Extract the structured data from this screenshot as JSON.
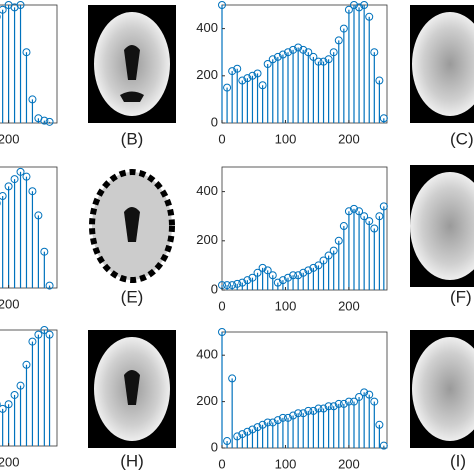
{
  "panel_labels": [
    "(B)",
    "(C)",
    "(E)",
    "(F)",
    "(H)",
    "(I)"
  ],
  "chart_data": [
    {
      "type": "stem",
      "x": [
        176,
        184,
        192,
        200,
        208,
        216,
        224,
        232,
        240,
        248,
        255
      ],
      "values": [
        400,
        450,
        480,
        500,
        490,
        500,
        300,
        100,
        20,
        10,
        5
      ],
      "xlim": [
        175,
        265
      ],
      "ylim": [
        0,
        500
      ],
      "xticks": [
        200
      ],
      "color": "#0072bd"
    },
    {
      "type": "stem",
      "x": [
        0,
        8,
        16,
        24,
        32,
        40,
        48,
        56,
        64,
        72,
        80,
        88,
        96,
        104,
        112,
        120,
        128,
        136,
        144,
        152,
        160,
        168,
        176,
        184,
        192,
        200,
        208,
        216,
        224,
        232,
        240,
        248,
        255
      ],
      "values": [
        500,
        150,
        220,
        230,
        180,
        190,
        200,
        210,
        160,
        250,
        270,
        280,
        290,
        300,
        310,
        320,
        310,
        300,
        280,
        260,
        260,
        270,
        300,
        350,
        400,
        480,
        500,
        490,
        500,
        450,
        300,
        180,
        20
      ],
      "xlim": [
        0,
        260
      ],
      "ylim": [
        0,
        500
      ],
      "xticks": [
        0,
        100,
        200
      ],
      "yticks": [
        0,
        200,
        400
      ],
      "color": "#0072bd"
    },
    {
      "type": "stem",
      "x": [
        176,
        184,
        192,
        200,
        208,
        216,
        224,
        232,
        240,
        248,
        255
      ],
      "values": [
        300,
        350,
        380,
        420,
        450,
        480,
        460,
        400,
        300,
        150,
        10
      ],
      "xlim": [
        175,
        265
      ],
      "ylim": [
        0,
        500
      ],
      "xticks": [
        200
      ],
      "color": "#0072bd"
    },
    {
      "type": "stem",
      "x": [
        0,
        8,
        16,
        24,
        32,
        40,
        48,
        56,
        64,
        72,
        80,
        88,
        96,
        104,
        112,
        120,
        128,
        136,
        144,
        152,
        160,
        168,
        176,
        184,
        192,
        200,
        208,
        216,
        224,
        232,
        240,
        248,
        255
      ],
      "values": [
        20,
        20,
        20,
        25,
        30,
        40,
        50,
        70,
        90,
        80,
        60,
        30,
        40,
        50,
        60,
        60,
        70,
        80,
        90,
        100,
        120,
        140,
        160,
        200,
        260,
        320,
        330,
        320,
        300,
        280,
        250,
        300,
        340
      ],
      "xlim": [
        0,
        260
      ],
      "ylim": [
        0,
        500
      ],
      "xticks": [
        0,
        100,
        200
      ],
      "yticks": [
        0,
        200,
        400
      ],
      "color": "#0072bd"
    },
    {
      "type": "stem",
      "x": [
        176,
        184,
        192,
        200,
        208,
        216,
        224,
        232,
        240,
        248,
        255
      ],
      "values": [
        200,
        180,
        160,
        180,
        220,
        260,
        350,
        450,
        480,
        500,
        480
      ],
      "xlim": [
        175,
        265
      ],
      "ylim": [
        0,
        500
      ],
      "xticks": [
        200
      ],
      "color": "#0072bd"
    },
    {
      "type": "stem",
      "x": [
        0,
        8,
        16,
        24,
        32,
        40,
        48,
        56,
        64,
        72,
        80,
        88,
        96,
        104,
        112,
        120,
        128,
        136,
        144,
        152,
        160,
        168,
        176,
        184,
        192,
        200,
        208,
        216,
        224,
        232,
        240,
        248,
        255
      ],
      "values": [
        500,
        30,
        300,
        50,
        60,
        70,
        80,
        90,
        100,
        110,
        110,
        120,
        130,
        130,
        140,
        150,
        150,
        160,
        160,
        170,
        170,
        180,
        180,
        190,
        190,
        200,
        200,
        220,
        240,
        230,
        200,
        100,
        10
      ],
      "xlim": [
        0,
        260
      ],
      "ylim": [
        0,
        500
      ],
      "xticks": [
        0,
        100,
        200
      ],
      "yticks": [
        0,
        200,
        400
      ],
      "color": "#0072bd"
    }
  ]
}
